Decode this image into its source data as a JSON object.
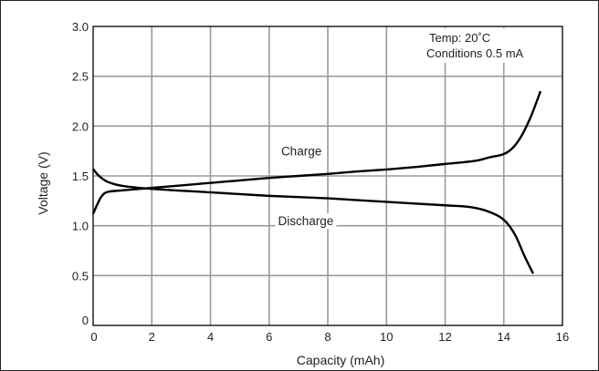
{
  "chart_data": {
    "type": "line",
    "xlabel": "Capacity (mAh)",
    "ylabel": "Voltage (V)",
    "xlim": [
      0,
      16
    ],
    "ylim": [
      0,
      3.0
    ],
    "xticks": [
      "0",
      "2",
      "4",
      "6",
      "8",
      "10",
      "12",
      "14",
      "16"
    ],
    "yticks": [
      "0",
      "0.5",
      "1.0",
      "1.5",
      "2.0",
      "2.5",
      "3.0"
    ],
    "grid": true,
    "annotations": [
      "Temp: 20˚C",
      "Conditions 0.5 mA"
    ],
    "series": [
      {
        "name": "Charge",
        "x": [
          0,
          0.15,
          0.3,
          0.5,
          1,
          2,
          3,
          4,
          5,
          6,
          7,
          8,
          9,
          10,
          11,
          12,
          13,
          13.5,
          14,
          14.3,
          14.6,
          14.9,
          15.1,
          15.25
        ],
        "y": [
          1.12,
          1.22,
          1.3,
          1.34,
          1.355,
          1.38,
          1.405,
          1.43,
          1.455,
          1.48,
          1.5,
          1.52,
          1.545,
          1.565,
          1.59,
          1.62,
          1.65,
          1.685,
          1.72,
          1.78,
          1.9,
          2.08,
          2.23,
          2.35
        ]
      },
      {
        "name": "Discharge",
        "x": [
          0,
          0.2,
          0.5,
          1,
          2,
          4,
          6,
          8,
          10,
          12,
          12.8,
          13.3,
          13.8,
          14.1,
          14.4,
          14.7,
          15.0
        ],
        "y": [
          1.57,
          1.5,
          1.44,
          1.4,
          1.37,
          1.335,
          1.3,
          1.275,
          1.24,
          1.205,
          1.19,
          1.16,
          1.1,
          1.03,
          0.9,
          0.7,
          0.52
        ]
      }
    ],
    "label_charge": "Charge",
    "label_discharge": "Discharge"
  }
}
